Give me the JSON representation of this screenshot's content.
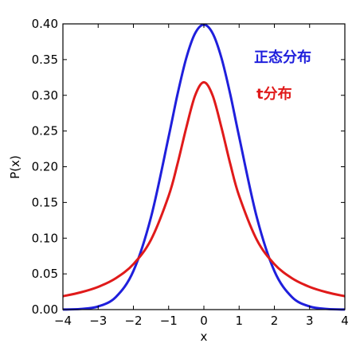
{
  "chart_data": {
    "type": "line",
    "title": "",
    "xlabel": "x",
    "ylabel": "P(x)",
    "xlim": [
      -4,
      4
    ],
    "ylim": [
      0,
      0.4
    ],
    "grid": false,
    "x_ticks": [
      -4,
      -3,
      -2,
      -1,
      0,
      1,
      2,
      3,
      4
    ],
    "x_tick_labels": [
      "−4",
      "−3",
      "−2",
      "−1",
      "0",
      "1",
      "2",
      "3",
      "4"
    ],
    "y_ticks": [
      0,
      0.05,
      0.1,
      0.15,
      0.2,
      0.25,
      0.3,
      0.35,
      0.4
    ],
    "y_tick_labels": [
      "0.00",
      "0.05",
      "0.10",
      "0.15",
      "0.20",
      "0.25",
      "0.30",
      "0.35",
      "0.40"
    ],
    "x": [
      -4,
      -3.5,
      -3,
      -2.5,
      -2,
      -1.5,
      -1,
      -0.75,
      -0.5,
      -0.25,
      0,
      0.25,
      0.5,
      0.75,
      1,
      1.5,
      2,
      2.5,
      3,
      3.5,
      4
    ],
    "series": [
      {
        "name": "正态分布",
        "color": "#1f1fdc",
        "values": [
          0.0001,
          0.0009,
          0.0044,
          0.0175,
          0.054,
          0.1295,
          0.242,
          0.3011,
          0.3521,
          0.3867,
          0.3989,
          0.3867,
          0.3521,
          0.3011,
          0.242,
          0.1295,
          0.054,
          0.0175,
          0.0044,
          0.0009,
          0.0001
        ]
      },
      {
        "name": "t分布",
        "color": "#e01a1a",
        "values": [
          0.0187,
          0.0241,
          0.0318,
          0.0439,
          0.0637,
          0.0979,
          0.1592,
          0.2037,
          0.2546,
          0.2996,
          0.3183,
          0.2996,
          0.2546,
          0.2037,
          0.1592,
          0.0979,
          0.0637,
          0.0439,
          0.0318,
          0.0241,
          0.0187
        ]
      }
    ]
  }
}
